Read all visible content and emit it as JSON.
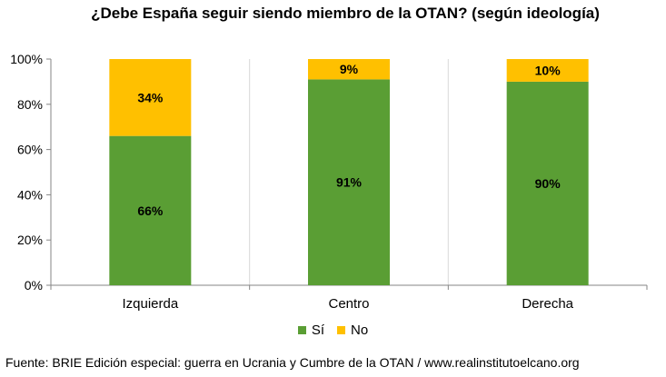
{
  "chart_data": {
    "type": "bar",
    "stacked": true,
    "title": "¿Debe España seguir siendo miembro de la OTAN? (según ideología)",
    "categories": [
      "Izquierda",
      "Centro",
      "Derecha"
    ],
    "series": [
      {
        "name": "Sí",
        "values": [
          66,
          91,
          90
        ],
        "labels": [
          "66%",
          "91%",
          "90%"
        ],
        "color": "#5A9E34"
      },
      {
        "name": "No",
        "values": [
          34,
          9,
          10
        ],
        "labels": [
          "34%",
          "9%",
          "10%"
        ],
        "color": "#FFC000"
      }
    ],
    "ylim": [
      0,
      100
    ],
    "yticks": [
      0,
      20,
      40,
      60,
      80,
      100
    ],
    "ytick_labels": [
      "0%",
      "20%",
      "40%",
      "60%",
      "80%",
      "100%"
    ],
    "grid": true,
    "legend": "bottom"
  },
  "source": "Fuente: BRIE Edición especial: guerra en Ucrania y Cumbre de la OTAN / www.realinstitutoelcano.org"
}
